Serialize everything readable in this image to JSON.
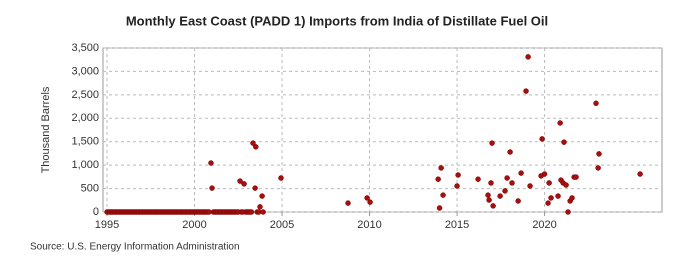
{
  "chart_data": {
    "type": "scatter",
    "title": "Monthly East Coast (PADD 1) Imports from India of Distillate Fuel Oil",
    "ylabel": "Thousand Barrels",
    "source": "Source: U.S. Energy Information Administration",
    "color": "#a50f0f",
    "grid": true,
    "xlim": [
      1994.77,
      2026.71
    ],
    "ylim": [
      0,
      3500
    ],
    "xticks": [
      1995,
      2000,
      2005,
      2010,
      2015,
      2020
    ],
    "yticks": [
      0,
      500,
      {
        "value": 1000,
        "label": "1,000"
      },
      {
        "value": 1500,
        "label": "1,500"
      },
      {
        "value": 2000,
        "label": "2,000"
      },
      {
        "value": 2500,
        "label": "2,500"
      },
      {
        "value": 3000,
        "label": "3,000"
      },
      {
        "value": 3500,
        "label": "3,500"
      }
    ],
    "x": [
      1995.0,
      1995.08,
      1995.17,
      1995.25,
      1995.33,
      1995.42,
      1995.5,
      1995.58,
      1995.67,
      1995.75,
      1995.83,
      1995.92,
      1996.0,
      1996.08,
      1996.17,
      1996.25,
      1996.33,
      1996.42,
      1996.5,
      1996.58,
      1996.67,
      1996.75,
      1996.83,
      1996.92,
      1997.0,
      1997.08,
      1997.17,
      1997.25,
      1997.33,
      1997.42,
      1997.5,
      1997.58,
      1997.67,
      1997.75,
      1997.83,
      1997.92,
      1998.0,
      1998.08,
      1998.17,
      1998.25,
      1998.33,
      1998.42,
      1998.5,
      1998.58,
      1998.67,
      1998.75,
      1998.83,
      1998.92,
      1999.0,
      1999.08,
      1999.17,
      1999.25,
      1999.33,
      1999.42,
      1999.5,
      1999.58,
      1999.67,
      1999.75,
      1999.83,
      1999.92,
      2000.0,
      2000.08,
      2000.17,
      2000.25,
      2000.33,
      2000.42,
      2000.5,
      2000.58,
      2000.67,
      2000.75,
      2000.83,
      2001.08,
      2001.17,
      2001.25,
      2001.33,
      2001.42,
      2001.5,
      2001.58,
      2001.67,
      2001.75,
      2001.83,
      2001.92,
      2002.0,
      2002.08,
      2002.17,
      2002.25,
      2002.33,
      2002.42,
      2002.5,
      2002.67,
      2002.75,
      2002.92,
      2003.0,
      2003.08,
      2003.17,
      2003.25,
      2003.58,
      2003.67,
      2003.92,
      2000.94,
      2001.0,
      2002.6,
      2002.83,
      2003.34,
      2003.5,
      2003.46,
      2003.86,
      2003.74,
      2004.94,
      2008.77,
      2009.86,
      2010.03,
      2013.92,
      2014.09,
      2014.0,
      2014.2,
      2015.0,
      2015.06,
      2016.2,
      2016.77,
      2016.83,
      2016.94,
      2017.0,
      2017.06,
      2017.46,
      2017.74,
      2017.86,
      2018.03,
      2018.14,
      2018.49,
      2018.66,
      2018.94,
      2019.06,
      2019.17,
      2019.86,
      2019.8,
      2020.0,
      2020.2,
      2020.26,
      2020.37,
      2020.77,
      2020.89,
      2020.94,
      2021.06,
      2021.11,
      2021.23,
      2021.34,
      2021.46,
      2021.57,
      2021.69,
      2021.8,
      2022.94,
      2023.06,
      2023.11,
      2025.46
    ],
    "values": [
      0,
      0,
      0,
      0,
      0,
      0,
      0,
      0,
      0,
      0,
      0,
      0,
      0,
      0,
      0,
      0,
      0,
      0,
      0,
      0,
      0,
      0,
      0,
      0,
      0,
      0,
      0,
      0,
      0,
      0,
      0,
      0,
      0,
      0,
      0,
      0,
      0,
      0,
      0,
      0,
      0,
      0,
      0,
      0,
      0,
      0,
      0,
      0,
      0,
      0,
      0,
      0,
      0,
      0,
      0,
      0,
      0,
      0,
      0,
      0,
      0,
      0,
      0,
      0,
      0,
      0,
      0,
      0,
      0,
      0,
      0,
      0,
      0,
      0,
      0,
      0,
      0,
      0,
      0,
      0,
      0,
      0,
      0,
      0,
      0,
      0,
      0,
      0,
      0,
      0,
      0,
      0,
      0,
      0,
      0,
      0,
      0,
      0,
      0,
      1045,
      510,
      660,
      600,
      1470,
      1390,
      510,
      340,
      110,
      725,
      190,
      300,
      210,
      700,
      940,
      85,
      360,
      555,
      790,
      700,
      360,
      255,
      620,
      1470,
      130,
      340,
      450,
      725,
      1280,
      620,
      235,
      830,
      2580,
      3310,
      555,
      1560,
      770,
      810,
      190,
      620,
      300,
      340,
      1900,
      680,
      620,
      1490,
      575,
      0,
      235,
      300,
      745,
      745,
      2320,
      940,
      1240,
      810
    ]
  }
}
